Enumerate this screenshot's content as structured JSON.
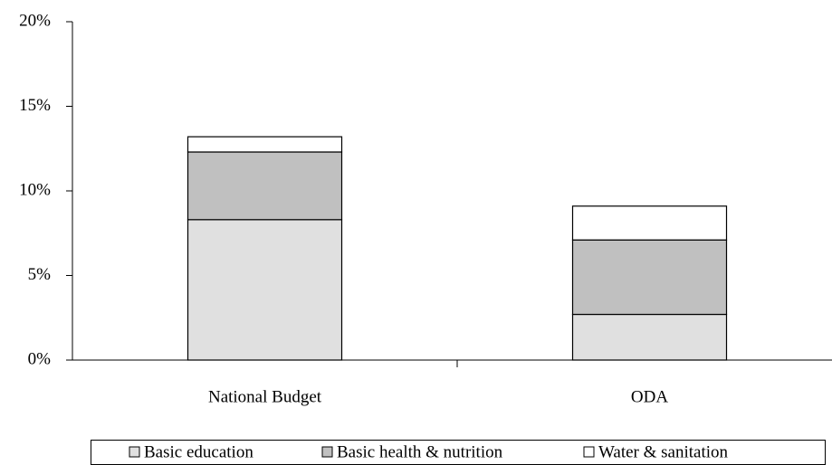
{
  "chart_data": {
    "type": "stacked_bar",
    "categories": [
      "National Budget",
      "ODA"
    ],
    "series": [
      {
        "name": "Basic education",
        "color": "#e0e0e0",
        "values": [
          8.3,
          2.7
        ]
      },
      {
        "name": "Basic health & nutrition",
        "color": "#c0c0c0",
        "values": [
          4.0,
          4.4
        ]
      },
      {
        "name": "Water & sanitation",
        "color": "#ffffff",
        "values": [
          0.9,
          2.0
        ]
      }
    ],
    "ylim": [
      0,
      20
    ],
    "yticks": [
      {
        "value": 0,
        "label": "0%"
      },
      {
        "value": 5,
        "label": "5%"
      },
      {
        "value": 10,
        "label": "10%"
      },
      {
        "value": 15,
        "label": "15%"
      },
      {
        "value": 20,
        "label": "20%"
      }
    ],
    "legend": "bottom"
  }
}
